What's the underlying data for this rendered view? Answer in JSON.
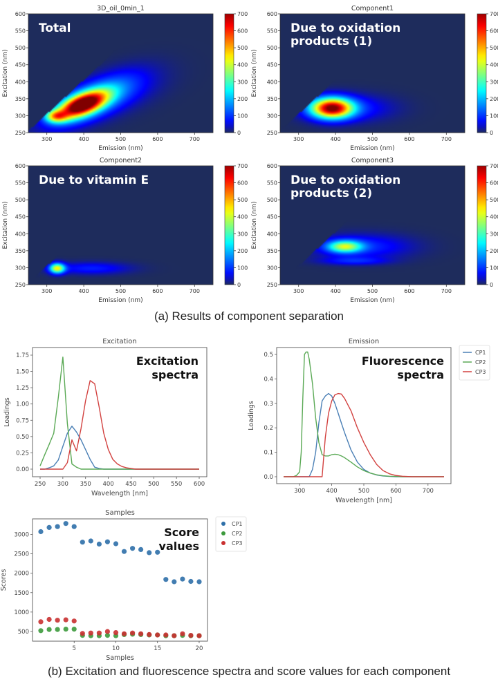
{
  "captions": {
    "a": "(a) Results of component separation",
    "b": "(b) Excitation and fluorescence spectra and score values for each component"
  },
  "chart_data": [
    {
      "type": "heatmap",
      "title": "3D_oil_0min_1",
      "annotation": "Total",
      "xlabel": "Emission (nm)",
      "ylabel": "Excitation (nm)",
      "xlim": [
        250,
        750
      ],
      "ylim": [
        250,
        600
      ],
      "xticks": [
        300,
        400,
        500,
        600,
        700
      ],
      "yticks": [
        250,
        300,
        350,
        400,
        450,
        500,
        550,
        600
      ],
      "colorbar": {
        "range": [
          0,
          700
        ],
        "ticks": [
          0,
          100,
          200,
          300,
          400,
          500,
          600,
          700
        ],
        "colormap": "jet"
      },
      "peaks": [
        {
          "em": 395,
          "ex": 332,
          "sx": 45,
          "sy": 22,
          "amp": 700,
          "tilt": 0.35
        },
        {
          "em": 425,
          "ex": 345,
          "sx": 75,
          "sy": 35,
          "amp": 180,
          "tilt": 0.45
        },
        {
          "em": 325,
          "ex": 298,
          "sx": 20,
          "sy": 12,
          "amp": 330,
          "tilt": 0.0
        },
        {
          "em": 470,
          "ex": 360,
          "sx": 90,
          "sy": 40,
          "amp": 60,
          "tilt": 0.3
        }
      ]
    },
    {
      "type": "heatmap",
      "title": "Component1",
      "annotation": "Due to oxidation\nproducts (1)",
      "xlabel": "Emission (nm)",
      "ylabel": "Excitation (nm)",
      "xlim": [
        250,
        750
      ],
      "ylim": [
        250,
        600
      ],
      "xticks": [
        300,
        400,
        500,
        600,
        700
      ],
      "yticks": [
        250,
        300,
        350,
        400,
        450,
        500,
        550,
        600
      ],
      "colorbar": {
        "range": [
          0,
          700
        ],
        "ticks": [
          0,
          100,
          200,
          300,
          400,
          500,
          600,
          700
        ],
        "colormap": "jet"
      },
      "peaks": [
        {
          "em": 390,
          "ex": 322,
          "sx": 38,
          "sy": 20,
          "amp": 680,
          "tilt": 0.0
        },
        {
          "em": 430,
          "ex": 322,
          "sx": 80,
          "sy": 26,
          "amp": 90,
          "tilt": 0.0
        }
      ]
    },
    {
      "type": "heatmap",
      "title": "Component2",
      "annotation": "Due to vitamin E",
      "xlabel": "Emission (nm)",
      "ylabel": "Excitation (nm)",
      "xlim": [
        250,
        750
      ],
      "ylim": [
        250,
        600
      ],
      "xticks": [
        300,
        400,
        500,
        600,
        700
      ],
      "yticks": [
        250,
        300,
        350,
        400,
        450,
        500,
        550,
        600
      ],
      "colorbar": {
        "range": [
          0,
          700
        ],
        "ticks": [
          0,
          100,
          200,
          300,
          400,
          500,
          600,
          700
        ],
        "colormap": "jet"
      },
      "peaks": [
        {
          "em": 328,
          "ex": 298,
          "sx": 14,
          "sy": 10,
          "amp": 420,
          "tilt": 0.0
        },
        {
          "em": 420,
          "ex": 298,
          "sx": 70,
          "sy": 12,
          "amp": 80,
          "tilt": 0.0
        }
      ]
    },
    {
      "type": "heatmap",
      "title": "Component3",
      "annotation": "Due to oxidation\nproducts (2)",
      "xlabel": "Emission (nm)",
      "ylabel": "Excitation (nm)",
      "xlim": [
        250,
        750
      ],
      "ylim": [
        250,
        600
      ],
      "xticks": [
        300,
        400,
        500,
        600,
        700
      ],
      "yticks": [
        250,
        300,
        350,
        400,
        450,
        500,
        550,
        600
      ],
      "colorbar": {
        "range": [
          0,
          700
        ],
        "ticks": [
          0,
          100,
          200,
          300,
          400,
          500,
          600,
          700
        ],
        "colormap": "jet"
      },
      "peaks": [
        {
          "em": 425,
          "ex": 362,
          "sx": 32,
          "sy": 12,
          "amp": 350,
          "tilt": 0.0
        },
        {
          "em": 470,
          "ex": 362,
          "sx": 90,
          "sy": 24,
          "amp": 90,
          "tilt": 0.0
        },
        {
          "em": 450,
          "ex": 320,
          "sx": 60,
          "sy": 8,
          "amp": 80,
          "tilt": 0.0
        }
      ]
    },
    {
      "type": "line",
      "title": "Excitation",
      "annotation": "Excitation\nspectra",
      "xlabel": "Wavelength [nm]",
      "ylabel": "Loadings",
      "xlim": [
        250,
        600
      ],
      "ylim": [
        0,
        1.75
      ],
      "xticks": [
        250,
        300,
        350,
        400,
        450,
        500,
        550,
        600
      ],
      "yticks": [
        "0.00",
        "0.25",
        "0.50",
        "0.75",
        "1.00",
        "1.25",
        "1.50",
        "1.75"
      ],
      "x": [
        250,
        260,
        270,
        280,
        290,
        300,
        310,
        320,
        330,
        340,
        350,
        360,
        370,
        380,
        390,
        400,
        410,
        420,
        430,
        440,
        450,
        460,
        470,
        480,
        490,
        500,
        510,
        520,
        530,
        540,
        550,
        560,
        570,
        580,
        590,
        600
      ],
      "series": [
        {
          "name": "CP1",
          "color": "#4a7fb5",
          "values": [
            0,
            0,
            0.02,
            0.05,
            0.14,
            0.35,
            0.55,
            0.66,
            0.57,
            0.45,
            0.3,
            0.15,
            0.03,
            0.01,
            0,
            0,
            0,
            0,
            0,
            0,
            0,
            0,
            0,
            0,
            0,
            0,
            0,
            0,
            0,
            0,
            0,
            0,
            0,
            0,
            0,
            0
          ]
        },
        {
          "name": "CP2",
          "color": "#5aa955",
          "values": [
            0.05,
            0.22,
            0.38,
            0.55,
            1.1,
            1.72,
            0.7,
            0.08,
            0.03,
            0,
            0,
            0,
            0,
            0,
            0,
            0,
            0,
            0,
            0,
            0,
            0,
            0,
            0,
            0,
            0,
            0,
            0,
            0,
            0,
            0,
            0,
            0,
            0,
            0,
            0,
            0
          ]
        },
        {
          "name": "CP3",
          "color": "#d2413f",
          "values": [
            0,
            0,
            0,
            0,
            0,
            0,
            0.1,
            0.45,
            0.28,
            0.62,
            1.05,
            1.36,
            1.31,
            0.95,
            0.55,
            0.3,
            0.15,
            0.08,
            0.04,
            0.02,
            0.01,
            0,
            0,
            0,
            0,
            0,
            0,
            0,
            0,
            0,
            0,
            0,
            0,
            0,
            0,
            0
          ]
        }
      ]
    },
    {
      "type": "line",
      "title": "Emission",
      "annotation": "Fluorescence\nspectra",
      "xlabel": "Wavelength [nm]",
      "ylabel": "Loadings",
      "xlim": [
        250,
        750
      ],
      "ylim": [
        0,
        0.5
      ],
      "xticks": [
        300,
        400,
        500,
        600,
        700
      ],
      "yticks": [
        "0.0",
        "0.1",
        "0.2",
        "0.3",
        "0.4",
        "0.5"
      ],
      "legend": {
        "placement": "outside-right",
        "entries": [
          "CP1",
          "CP2",
          "CP3"
        ]
      },
      "x": [
        250,
        280,
        290,
        300,
        305,
        310,
        315,
        320,
        325,
        330,
        340,
        350,
        360,
        370,
        380,
        390,
        400,
        410,
        420,
        430,
        440,
        460,
        480,
        500,
        520,
        540,
        560,
        580,
        600,
        620,
        650,
        700,
        750
      ],
      "series": [
        {
          "name": "CP1",
          "color": "#4a7fb5",
          "values": [
            0,
            0,
            0,
            0,
            0,
            0,
            0,
            0,
            0,
            0,
            0.03,
            0.1,
            0.22,
            0.31,
            0.33,
            0.34,
            0.33,
            0.3,
            0.26,
            0.22,
            0.18,
            0.11,
            0.06,
            0.03,
            0.015,
            0.007,
            0.003,
            0.001,
            0,
            0,
            0,
            0,
            0
          ]
        },
        {
          "name": "CP2",
          "color": "#5aa955",
          "values": [
            0,
            0,
            0.005,
            0.02,
            0.1,
            0.32,
            0.5,
            0.51,
            0.51,
            0.48,
            0.38,
            0.24,
            0.14,
            0.09,
            0.085,
            0.085,
            0.09,
            0.092,
            0.09,
            0.085,
            0.078,
            0.06,
            0.04,
            0.025,
            0.015,
            0.008,
            0.004,
            0.002,
            0.001,
            0,
            0,
            0,
            0
          ]
        },
        {
          "name": "CP3",
          "color": "#d2413f",
          "values": [
            0,
            0,
            0,
            0,
            0,
            0,
            0,
            0,
            0,
            0,
            0,
            0,
            0,
            0,
            0.16,
            0.26,
            0.31,
            0.335,
            0.34,
            0.338,
            0.32,
            0.27,
            0.2,
            0.14,
            0.09,
            0.05,
            0.025,
            0.012,
            0.005,
            0.002,
            0,
            0,
            0
          ]
        }
      ]
    },
    {
      "type": "scatter",
      "title": "Samples",
      "annotation": "Score\nvalues",
      "xlabel": "Samples",
      "ylabel": "Scores",
      "xlim": [
        0,
        21
      ],
      "ylim": [
        250,
        3400
      ],
      "xticks": [
        5,
        10,
        15,
        20
      ],
      "yticks": [
        500,
        1000,
        1500,
        2000,
        2500,
        3000
      ],
      "legend": {
        "placement": "outside-right",
        "entries": [
          "CP1",
          "CP2",
          "CP3"
        ]
      },
      "x": [
        1,
        2,
        3,
        4,
        5,
        6,
        7,
        8,
        9,
        10,
        11,
        12,
        13,
        14,
        15,
        16,
        17,
        18,
        19,
        20
      ],
      "series": [
        {
          "name": "CP1",
          "color": "#2e6fa8",
          "values": [
            3070,
            3180,
            3200,
            3280,
            3200,
            2800,
            2830,
            2750,
            2810,
            2760,
            2560,
            2640,
            2610,
            2530,
            2540,
            1840,
            1780,
            1850,
            1790,
            1780
          ]
        },
        {
          "name": "CP2",
          "color": "#3c9a3c",
          "values": [
            520,
            550,
            550,
            560,
            560,
            400,
            390,
            390,
            400,
            390,
            420,
            430,
            420,
            410,
            410,
            390,
            390,
            400,
            390,
            390
          ]
        },
        {
          "name": "CP3",
          "color": "#c93030",
          "values": [
            750,
            810,
            790,
            800,
            770,
            450,
            460,
            460,
            500,
            470,
            440,
            460,
            440,
            420,
            410,
            410,
            390,
            440,
            400,
            390
          ]
        }
      ]
    }
  ]
}
